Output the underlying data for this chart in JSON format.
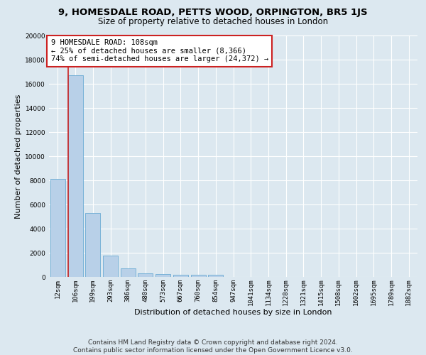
{
  "title1": "9, HOMESDALE ROAD, PETTS WOOD, ORPINGTON, BR5 1JS",
  "title2": "Size of property relative to detached houses in London",
  "xlabel": "Distribution of detached houses by size in London",
  "ylabel": "Number of detached properties",
  "bin_labels": [
    "12sqm",
    "106sqm",
    "199sqm",
    "293sqm",
    "386sqm",
    "480sqm",
    "573sqm",
    "667sqm",
    "760sqm",
    "854sqm",
    "947sqm",
    "1041sqm",
    "1134sqm",
    "1228sqm",
    "1321sqm",
    "1415sqm",
    "1508sqm",
    "1602sqm",
    "1695sqm",
    "1789sqm",
    "1882sqm"
  ],
  "bar_heights": [
    8100,
    16700,
    5300,
    1750,
    700,
    320,
    230,
    195,
    175,
    160,
    0,
    0,
    0,
    0,
    0,
    0,
    0,
    0,
    0,
    0,
    0
  ],
  "bar_color": "#b8d0e8",
  "bar_edge_color": "#6aaad4",
  "vline_color": "#cc2222",
  "annotation_text": "9 HOMESDALE ROAD: 108sqm\n← 25% of detached houses are smaller (8,366)\n74% of semi-detached houses are larger (24,372) →",
  "annotation_box_color": "#ffffff",
  "annotation_box_edge": "#cc2222",
  "ylim": [
    0,
    20000
  ],
  "yticks": [
    0,
    2000,
    4000,
    6000,
    8000,
    10000,
    12000,
    14000,
    16000,
    18000,
    20000
  ],
  "background_color": "#dce8f0",
  "grid_color": "#ffffff",
  "footnote": "Contains HM Land Registry data © Crown copyright and database right 2024.\nContains public sector information licensed under the Open Government Licence v3.0.",
  "title1_fontsize": 9.5,
  "title2_fontsize": 8.5,
  "xlabel_fontsize": 8,
  "ylabel_fontsize": 8,
  "tick_fontsize": 6.5,
  "annotation_fontsize": 7.5,
  "footnote_fontsize": 6.5
}
